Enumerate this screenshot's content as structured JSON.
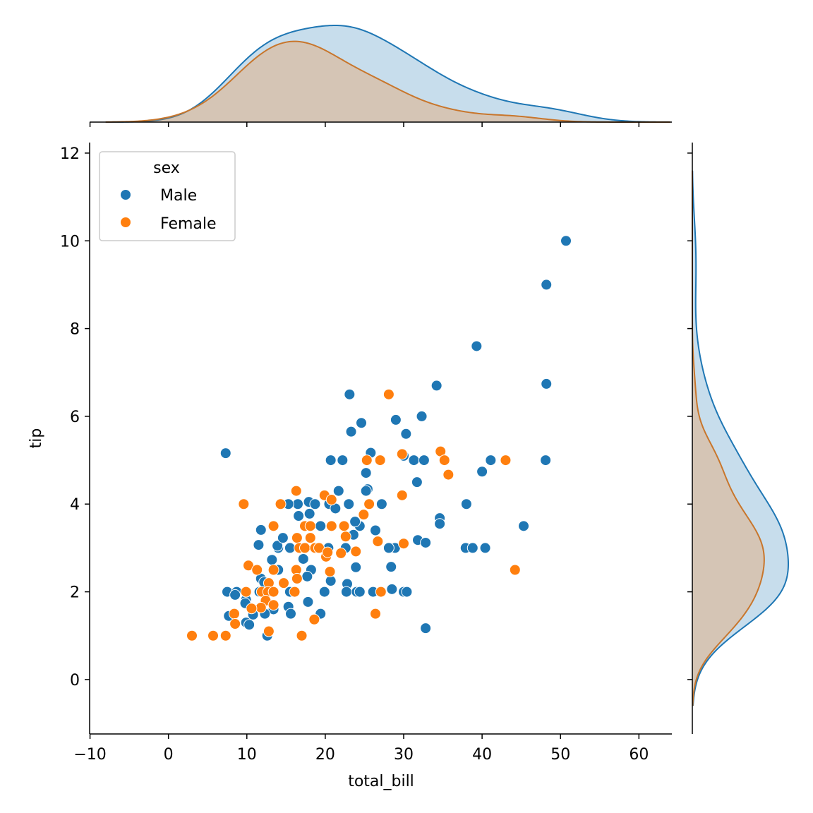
{
  "chart_data": {
    "type": "scatter",
    "title": "",
    "xlabel": "total_bill",
    "ylabel": "tip",
    "xlim": [
      -10.05,
      64.2
    ],
    "ylim": [
      -1.24,
      12.24
    ],
    "xticks": [
      -10,
      0,
      10,
      20,
      30,
      40,
      50,
      60
    ],
    "yticks": [
      0,
      2,
      4,
      6,
      8,
      10,
      12
    ],
    "grid": false,
    "legend": {
      "title": "sex",
      "placement": "top-left"
    },
    "marginals": {
      "top": "kde of total_bill by sex",
      "right": "kde of tip by sex",
      "fill": true
    },
    "series": [
      {
        "name": "Male",
        "color": "#1f77b4",
        "points": [
          [
            50.7,
            10.0
          ],
          [
            48.2,
            9.0
          ],
          [
            39.3,
            7.6
          ],
          [
            48.2,
            6.74
          ],
          [
            34.2,
            6.7
          ],
          [
            23.1,
            6.5
          ],
          [
            32.3,
            6.0
          ],
          [
            29.0,
            5.92
          ],
          [
            24.6,
            5.85
          ],
          [
            30.3,
            5.6
          ],
          [
            23.3,
            5.65
          ],
          [
            7.3,
            5.16
          ],
          [
            25.8,
            5.17
          ],
          [
            30.0,
            5.1
          ],
          [
            31.3,
            5.0
          ],
          [
            32.6,
            5.0
          ],
          [
            20.7,
            5.0
          ],
          [
            22.2,
            5.0
          ],
          [
            41.1,
            5.0
          ],
          [
            48.1,
            5.0
          ],
          [
            40.0,
            4.74
          ],
          [
            25.2,
            4.71
          ],
          [
            31.7,
            4.5
          ],
          [
            21.7,
            4.3
          ],
          [
            25.4,
            4.34
          ],
          [
            25.2,
            4.3
          ],
          [
            34.6,
            3.68
          ],
          [
            34.6,
            3.55
          ],
          [
            45.3,
            3.5
          ],
          [
            38.0,
            4.0
          ],
          [
            27.2,
            4.0
          ],
          [
            23.0,
            4.0
          ],
          [
            16.5,
            4.0
          ],
          [
            17.9,
            4.05
          ],
          [
            18.7,
            4.0
          ],
          [
            20.5,
            4.0
          ],
          [
            15.3,
            4.0
          ],
          [
            16.6,
            3.73
          ],
          [
            18.0,
            3.78
          ],
          [
            21.3,
            3.9
          ],
          [
            11.8,
            3.41
          ],
          [
            26.4,
            3.4
          ],
          [
            24.4,
            3.5
          ],
          [
            23.8,
            3.6
          ],
          [
            19.4,
            3.5
          ],
          [
            31.8,
            3.18
          ],
          [
            32.8,
            3.12
          ],
          [
            37.9,
            3.0
          ],
          [
            38.8,
            3.0
          ],
          [
            40.4,
            3.0
          ],
          [
            28.9,
            3.0
          ],
          [
            28.1,
            3.0
          ],
          [
            22.6,
            3.0
          ],
          [
            20.4,
            3.0
          ],
          [
            15.5,
            3.0
          ],
          [
            14.0,
            3.0
          ],
          [
            13.9,
            3.05
          ],
          [
            14.6,
            3.23
          ],
          [
            23.6,
            3.3
          ],
          [
            17.2,
            2.75
          ],
          [
            13.2,
            2.73
          ],
          [
            11.5,
            3.07
          ],
          [
            23.9,
            2.56
          ],
          [
            28.4,
            2.57
          ],
          [
            18.2,
            2.5
          ],
          [
            14.0,
            2.5
          ],
          [
            11.8,
            2.3
          ],
          [
            17.7,
            2.35
          ],
          [
            20.7,
            2.25
          ],
          [
            22.8,
            2.18
          ],
          [
            12.2,
            2.22
          ],
          [
            7.5,
            2.0
          ],
          [
            8.7,
            2.0
          ],
          [
            11.6,
            2.0
          ],
          [
            15.5,
            2.0
          ],
          [
            19.9,
            2.0
          ],
          [
            22.7,
            2.0
          ],
          [
            24.0,
            2.0
          ],
          [
            24.4,
            2.0
          ],
          [
            26.1,
            2.0
          ],
          [
            28.5,
            2.06
          ],
          [
            30.0,
            2.0
          ],
          [
            30.4,
            2.0
          ],
          [
            8.5,
            1.93
          ],
          [
            9.9,
            1.82
          ],
          [
            9.8,
            1.74
          ],
          [
            15.3,
            1.66
          ],
          [
            17.8,
            1.77
          ],
          [
            15.6,
            1.5
          ],
          [
            19.4,
            1.5
          ],
          [
            13.4,
            1.6
          ],
          [
            7.7,
            1.45
          ],
          [
            10.8,
            1.48
          ],
          [
            12.3,
            1.5
          ],
          [
            9.9,
            1.3
          ],
          [
            10.3,
            1.25
          ],
          [
            32.8,
            1.17
          ],
          [
            12.6,
            1.0
          ]
        ]
      },
      {
        "name": "Female",
        "color": "#ff7f0e",
        "points": [
          [
            28.1,
            6.5
          ],
          [
            29.8,
            5.14
          ],
          [
            34.7,
            5.2
          ],
          [
            35.2,
            5.0
          ],
          [
            25.3,
            5.0
          ],
          [
            27.0,
            5.0
          ],
          [
            43.0,
            5.0
          ],
          [
            35.7,
            4.67
          ],
          [
            16.3,
            4.3
          ],
          [
            19.9,
            4.2
          ],
          [
            20.8,
            4.1
          ],
          [
            29.8,
            4.2
          ],
          [
            9.6,
            4.0
          ],
          [
            14.3,
            4.0
          ],
          [
            25.6,
            4.0
          ],
          [
            24.9,
            3.76
          ],
          [
            13.4,
            3.5
          ],
          [
            17.4,
            3.5
          ],
          [
            18.1,
            3.5
          ],
          [
            20.8,
            3.5
          ],
          [
            22.4,
            3.5
          ],
          [
            16.4,
            3.23
          ],
          [
            18.1,
            3.23
          ],
          [
            22.6,
            3.26
          ],
          [
            26.7,
            3.15
          ],
          [
            30.0,
            3.1
          ],
          [
            16.7,
            3.0
          ],
          [
            17.4,
            3.0
          ],
          [
            18.7,
            3.0
          ],
          [
            19.2,
            3.0
          ],
          [
            20.1,
            2.8
          ],
          [
            20.3,
            2.9
          ],
          [
            22.0,
            2.88
          ],
          [
            23.9,
            2.92
          ],
          [
            10.2,
            2.6
          ],
          [
            16.3,
            2.5
          ],
          [
            11.3,
            2.5
          ],
          [
            13.4,
            2.5
          ],
          [
            44.2,
            2.5
          ],
          [
            20.6,
            2.46
          ],
          [
            14.7,
            2.2
          ],
          [
            12.8,
            2.2
          ],
          [
            16.4,
            2.3
          ],
          [
            9.9,
            2.0
          ],
          [
            11.9,
            2.0
          ],
          [
            12.7,
            2.0
          ],
          [
            13.4,
            2.0
          ],
          [
            16.1,
            2.0
          ],
          [
            27.1,
            2.0
          ],
          [
            12.4,
            1.8
          ],
          [
            13.4,
            1.7
          ],
          [
            11.8,
            1.64
          ],
          [
            10.6,
            1.62
          ],
          [
            8.4,
            1.5
          ],
          [
            26.4,
            1.5
          ],
          [
            8.5,
            1.27
          ],
          [
            18.6,
            1.37
          ],
          [
            12.8,
            1.1
          ],
          [
            3.0,
            1.0
          ],
          [
            5.7,
            1.0
          ],
          [
            7.3,
            1.0
          ],
          [
            17.0,
            1.0
          ]
        ]
      }
    ]
  }
}
